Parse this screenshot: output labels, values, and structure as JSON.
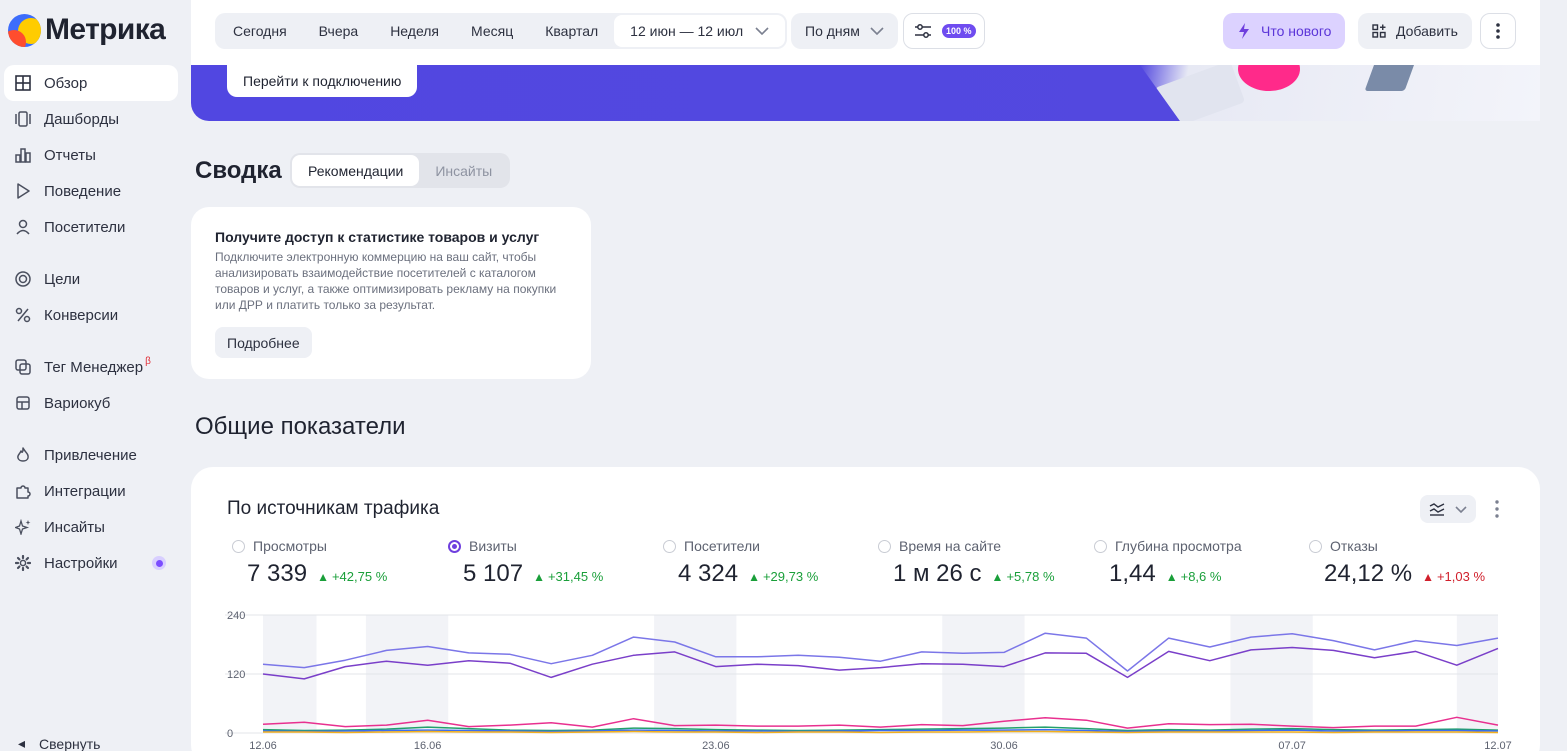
{
  "logo": {
    "text": "Метрика"
  },
  "sidebar": {
    "items": [
      {
        "label": "Обзор",
        "icon": "grid-icon",
        "active": true
      },
      {
        "label": "Дашборды",
        "icon": "dashboards-icon"
      },
      {
        "label": "Отчеты",
        "icon": "bar-chart-icon"
      },
      {
        "label": "Поведение",
        "icon": "play-icon"
      },
      {
        "label": "Посетители",
        "icon": "user-icon"
      },
      {
        "label": "Цели",
        "icon": "target-icon"
      },
      {
        "label": "Конверсии",
        "icon": "percent-icon"
      },
      {
        "label": "Тег Менеджер",
        "icon": "tag-manager-icon",
        "badge": "β"
      },
      {
        "label": "Вариокуб",
        "icon": "variocube-icon"
      },
      {
        "label": "Привлечение",
        "icon": "flame-icon"
      },
      {
        "label": "Интеграции",
        "icon": "puzzle-icon"
      },
      {
        "label": "Инсайты",
        "icon": "sparkle-icon"
      },
      {
        "label": "Настройки",
        "icon": "gear-icon"
      }
    ],
    "collapse_label": "Свернуть"
  },
  "topbar": {
    "periods": [
      "Сегодня",
      "Вчера",
      "Неделя",
      "Месяц",
      "Квартал"
    ],
    "date_range": "12 июн — 12 июл",
    "grouping": "По дням",
    "sampling_badge": "100 %",
    "whats_new": "Что нового",
    "add": "Добавить"
  },
  "banner": {
    "button": "Перейти к подключению"
  },
  "summary": {
    "title": "Сводка",
    "tabs": [
      "Рекомендации",
      "Инсайты"
    ],
    "card": {
      "title": "Получите доступ к статистике товаров и услуг",
      "text": "Подключите электронную коммерцию на ваш сайт, чтобы анализировать взаимодействие посетителей с каталогом товаров и услуг, а также оптимизировать рекламу на покупки или ДРР и платить только за результат.",
      "button": "Подробнее"
    }
  },
  "general": {
    "title": "Общие показатели",
    "card_title": "По источникам трафика",
    "metrics": [
      {
        "label": "Просмотры",
        "value": "7 339",
        "delta": "+42,75 %",
        "trend": "up",
        "selected": false
      },
      {
        "label": "Визиты",
        "value": "5 107",
        "delta": "+31,45 %",
        "trend": "up",
        "selected": true
      },
      {
        "label": "Посетители",
        "value": "4 324",
        "delta": "+29,73 %",
        "trend": "up",
        "selected": false
      },
      {
        "label": "Время на сайте",
        "value": "1 м 26 с",
        "delta": "+5,78 %",
        "trend": "up",
        "selected": false
      },
      {
        "label": "Глубина просмотра",
        "value": "1,44",
        "delta": "+8,6 %",
        "trend": "up",
        "selected": false
      },
      {
        "label": "Отказы",
        "value": "24,12 %",
        "delta": "+1,03 %",
        "trend": "up-bad",
        "selected": false
      }
    ]
  },
  "colors": {
    "accent": "#6f3fde",
    "good": "#1a9f3a",
    "bad": "#d11f2b",
    "banner": "#5147e1"
  },
  "chart_data": {
    "type": "line",
    "x": [
      "12.06",
      "13.06",
      "14.06",
      "15.06",
      "16.06",
      "17.06",
      "18.06",
      "19.06",
      "20.06",
      "21.06",
      "22.06",
      "23.06",
      "24.06",
      "25.06",
      "26.06",
      "27.06",
      "28.06",
      "29.06",
      "30.06",
      "01.07",
      "02.07",
      "03.07",
      "04.07",
      "05.07",
      "06.07",
      "07.07",
      "08.07",
      "09.07",
      "10.07",
      "11.07",
      "12.07"
    ],
    "x_tick_labels": [
      "12.06",
      "16.06",
      "23.06",
      "30.06",
      "07.07",
      "12.07"
    ],
    "y_ticks": [
      0,
      120,
      240
    ],
    "ylim": [
      0,
      240
    ],
    "weekend_bands": [
      [
        "15.06",
        "16.06"
      ],
      [
        "22.06",
        "23.06"
      ],
      [
        "29.06",
        "30.06"
      ],
      [
        "06.07",
        "07.07"
      ]
    ],
    "series": [
      {
        "color": "#7b76e8",
        "values": [
          140,
          133,
          148,
          168,
          176,
          163,
          160,
          141,
          158,
          195,
          185,
          155,
          155,
          158,
          154,
          146,
          165,
          162,
          164,
          203,
          193,
          126,
          193,
          175,
          195,
          202,
          188,
          169,
          188,
          178,
          193
        ]
      },
      {
        "color": "#7a3fc9",
        "values": [
          120,
          110,
          135,
          146,
          138,
          147,
          142,
          113,
          140,
          158,
          165,
          135,
          140,
          137,
          128,
          133,
          141,
          140,
          135,
          163,
          162,
          113,
          166,
          147,
          169,
          174,
          168,
          153,
          166,
          138,
          172
        ]
      },
      {
        "color": "#e8308f",
        "values": [
          18,
          22,
          13,
          16,
          26,
          13,
          16,
          21,
          12,
          29,
          15,
          16,
          14,
          14,
          16,
          12,
          17,
          15,
          24,
          31,
          26,
          10,
          19,
          17,
          18,
          14,
          11,
          14,
          14,
          32,
          16
        ]
      },
      {
        "color": "#22a06b",
        "values": [
          7,
          5,
          6,
          8,
          12,
          9,
          6,
          5,
          6,
          10,
          9,
          7,
          6,
          5,
          6,
          7,
          8,
          9,
          10,
          12,
          9,
          5,
          7,
          6,
          8,
          9,
          7,
          6,
          7,
          8,
          6
        ]
      },
      {
        "color": "#3a6df0",
        "values": [
          4,
          3,
          4,
          5,
          6,
          5,
          4,
          3,
          4,
          6,
          5,
          4,
          4,
          3,
          4,
          5,
          5,
          6,
          6,
          7,
          5,
          3,
          4,
          4,
          5,
          6,
          4,
          4,
          5,
          5,
          4
        ]
      },
      {
        "color": "#f2b01e",
        "values": [
          2,
          2,
          1,
          2,
          3,
          2,
          2,
          1,
          2,
          3,
          2,
          2,
          1,
          2,
          2,
          1,
          2,
          2,
          3,
          3,
          2,
          1,
          2,
          2,
          2,
          2,
          1,
          2,
          2,
          2,
          1
        ]
      }
    ],
    "title": "",
    "xlabel": "",
    "ylabel": "",
    "grid": true
  }
}
